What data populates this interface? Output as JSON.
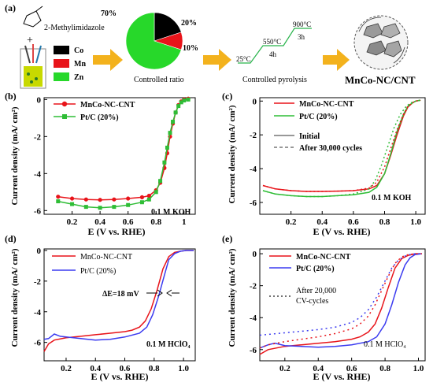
{
  "scheme": {
    "panel_label": "(a)",
    "reagent": "2-Methylimidazole",
    "plus": "+",
    "legend": [
      {
        "label": "Co",
        "color": "#000000"
      },
      {
        "label": "Mn",
        "color": "#e8141a"
      },
      {
        "label": "Zn",
        "color": "#27d82a"
      }
    ],
    "pie": {
      "slices": [
        {
          "name": "Co",
          "value": 20,
          "color": "#000000"
        },
        {
          "name": "Mn",
          "value": 10,
          "color": "#e8141a"
        },
        {
          "name": "Zn",
          "value": 70,
          "color": "#27d82a"
        }
      ],
      "labels": [
        "70%",
        "20%",
        "10%"
      ],
      "caption": "Controlled ratio"
    },
    "pyrolysis": {
      "temps": [
        "25°C",
        "550°C",
        "900°C"
      ],
      "holds": [
        "4h",
        "3h"
      ],
      "caption": "Controlled pyrolysis"
    },
    "product": "MnCo-NC/CNT",
    "arrow_color": "#f3b21d"
  },
  "chart_data": [
    {
      "panel": "(b)",
      "type": "line",
      "xlabel": "E (V vs. RHE)",
      "ylabel": "Current density (mA/ cm²)",
      "xlim": [
        0,
        1.08
      ],
      "ylim": [
        -6.2,
        0.1
      ],
      "xticks": [
        0.2,
        0.4,
        0.6,
        0.8,
        1
      ],
      "xticklabels": [
        "0.2",
        "0.4",
        "0.6",
        "0.8",
        "1"
      ],
      "yticks": [
        0,
        -2,
        -4,
        -6
      ],
      "yticklabels": [
        "0",
        "-2",
        "-4",
        "-6"
      ],
      "annotation": "0.1 M KOH",
      "series": [
        {
          "name": "MnCo-NC-CNT",
          "color": "#e8141a",
          "marker": "circle",
          "x": [
            0.1,
            0.2,
            0.3,
            0.4,
            0.5,
            0.6,
            0.7,
            0.75,
            0.8,
            0.83,
            0.86,
            0.88,
            0.9,
            0.92,
            0.94,
            0.96,
            0.98,
            1.0,
            1.03
          ],
          "y": [
            -5.25,
            -5.35,
            -5.4,
            -5.42,
            -5.4,
            -5.35,
            -5.28,
            -5.2,
            -4.9,
            -4.5,
            -3.7,
            -2.9,
            -2.0,
            -1.3,
            -0.7,
            -0.3,
            -0.1,
            0.0,
            0.05
          ]
        },
        {
          "name": "Pt/C (20%)",
          "color": "#2fbd36",
          "marker": "square",
          "x": [
            0.1,
            0.2,
            0.3,
            0.4,
            0.5,
            0.6,
            0.7,
            0.75,
            0.8,
            0.83,
            0.86,
            0.88,
            0.9,
            0.92,
            0.94,
            0.96,
            0.98,
            1.0,
            1.03
          ],
          "y": [
            -5.5,
            -5.65,
            -5.8,
            -5.85,
            -5.8,
            -5.7,
            -5.55,
            -5.4,
            -5.0,
            -4.4,
            -3.4,
            -2.6,
            -1.8,
            -1.2,
            -0.7,
            -0.35,
            -0.15,
            -0.05,
            0.0
          ]
        }
      ]
    },
    {
      "panel": "(c)",
      "type": "line",
      "xlabel": "E (V vs. RHE)",
      "ylabel": "Current density (mA/ cm²)",
      "xlim": [
        0,
        1.06
      ],
      "ylim": [
        -6.7,
        0.2
      ],
      "xticks": [
        0.2,
        0.4,
        0.6,
        0.8,
        1.0
      ],
      "xticklabels": [
        "0.2",
        "0.4",
        "0.6",
        "0.8",
        "1.0"
      ],
      "yticks": [
        0,
        -2,
        -4,
        -6
      ],
      "yticklabels": [
        "0",
        "-2",
        "-4",
        "-6"
      ],
      "annotation": "0.1 M KOH",
      "legend": [
        "MnCo-NC-CNT",
        "Pt/C (20%)",
        "Initial",
        "After 30,000 cycles"
      ],
      "series": [
        {
          "name": "MnCo-NC-CNT",
          "color": "#e8141a",
          "dash": "",
          "x": [
            0.02,
            0.1,
            0.2,
            0.3,
            0.4,
            0.5,
            0.6,
            0.7,
            0.75,
            0.8,
            0.84,
            0.88,
            0.92,
            0.95,
            0.98,
            1.0,
            1.03
          ],
          "y": [
            -5.0,
            -5.2,
            -5.3,
            -5.35,
            -5.35,
            -5.33,
            -5.3,
            -5.2,
            -5.0,
            -4.3,
            -3.2,
            -2.0,
            -0.9,
            -0.35,
            -0.1,
            0.0,
            0.05
          ]
        },
        {
          "name": "Pt/C (20%)",
          "color": "#2fbd36",
          "dash": "",
          "x": [
            0.02,
            0.1,
            0.2,
            0.3,
            0.4,
            0.5,
            0.6,
            0.7,
            0.75,
            0.8,
            0.84,
            0.88,
            0.92,
            0.95,
            0.98,
            1.0,
            1.03
          ],
          "y": [
            -5.3,
            -5.5,
            -5.6,
            -5.65,
            -5.65,
            -5.6,
            -5.55,
            -5.4,
            -5.1,
            -4.3,
            -3.1,
            -1.8,
            -0.8,
            -0.3,
            -0.1,
            0.0,
            0.05
          ]
        },
        {
          "name": "MnCo-NC-CNT After 30,000 cycles",
          "color": "#e8141a",
          "dash": "2 3",
          "x": [
            0.02,
            0.1,
            0.2,
            0.3,
            0.4,
            0.5,
            0.6,
            0.7,
            0.75,
            0.8,
            0.84,
            0.88,
            0.92,
            0.95,
            0.98,
            1.0,
            1.03
          ],
          "y": [
            -5.0,
            -5.2,
            -5.3,
            -5.35,
            -5.35,
            -5.33,
            -5.3,
            -5.15,
            -4.8,
            -3.9,
            -2.8,
            -1.7,
            -0.8,
            -0.3,
            -0.1,
            0.0,
            0.05
          ]
        },
        {
          "name": "Pt/C (20%) After 30,000 cycles",
          "color": "#2fbd36",
          "dash": "2 3",
          "x": [
            0.02,
            0.1,
            0.2,
            0.3,
            0.4,
            0.5,
            0.6,
            0.7,
            0.74,
            0.78,
            0.82,
            0.86,
            0.9,
            0.94,
            0.97,
            1.0,
            1.03
          ],
          "y": [
            -5.3,
            -5.5,
            -5.6,
            -5.65,
            -5.65,
            -5.6,
            -5.5,
            -5.2,
            -4.7,
            -3.8,
            -2.7,
            -1.6,
            -0.8,
            -0.3,
            -0.1,
            0.0,
            0.05
          ]
        }
      ]
    },
    {
      "panel": "(d)",
      "type": "line",
      "xlabel": "E (V vs. RHE)",
      "ylabel": "Current density (mA/ cm²)",
      "xlim": [
        0.05,
        1.08
      ],
      "ylim": [
        -7.2,
        0.1
      ],
      "xticks": [
        0.2,
        0.4,
        0.6,
        0.8,
        1.0
      ],
      "xticklabels": [
        "0.2",
        "0.4",
        "0.6",
        "0.8",
        "1.0"
      ],
      "yticks": [
        0,
        -2,
        -4,
        -6
      ],
      "yticklabels": [
        "0",
        "-2",
        "-4",
        "-6"
      ],
      "annotation": "0.1 M HClO₄",
      "delta_label": "ΔE=18 mV",
      "series": [
        {
          "name": "MnCo-NC-CNT",
          "color": "#e8141a",
          "x": [
            0.05,
            0.08,
            0.12,
            0.2,
            0.3,
            0.4,
            0.5,
            0.6,
            0.65,
            0.7,
            0.74,
            0.78,
            0.82,
            0.86,
            0.9,
            0.94,
            0.98,
            1.02,
            1.07
          ],
          "y": [
            -6.6,
            -6.1,
            -5.85,
            -5.7,
            -5.6,
            -5.5,
            -5.4,
            -5.3,
            -5.2,
            -5.0,
            -4.6,
            -3.8,
            -2.6,
            -1.2,
            -0.4,
            -0.12,
            -0.05,
            0.0,
            0.0
          ]
        },
        {
          "name": "Pt/C (20%)",
          "color": "#3b3bf0",
          "x": [
            0.05,
            0.08,
            0.12,
            0.16,
            0.2,
            0.3,
            0.4,
            0.5,
            0.6,
            0.7,
            0.75,
            0.79,
            0.83,
            0.87,
            0.9,
            0.94,
            0.98,
            1.02,
            1.07
          ],
          "y": [
            -5.8,
            -5.75,
            -5.45,
            -5.6,
            -5.65,
            -5.75,
            -5.85,
            -5.8,
            -5.65,
            -5.4,
            -5.0,
            -4.2,
            -3.0,
            -1.6,
            -0.6,
            -0.2,
            -0.05,
            0.0,
            0.0
          ]
        }
      ]
    },
    {
      "panel": "(e)",
      "type": "line",
      "xlabel": "E (V vs. RHE)",
      "ylabel": "Current density (mA/ cm²)",
      "xlim": [
        0.05,
        1.04
      ],
      "ylim": [
        -6.7,
        0.3
      ],
      "xticks": [
        0.2,
        0.4,
        0.6,
        0.8,
        1.0
      ],
      "xticklabels": [
        "0.2",
        "0.4",
        "0.6",
        "0.8",
        "1.0"
      ],
      "yticks": [
        0,
        -2,
        -4,
        -6
      ],
      "yticklabels": [
        "0",
        "-2",
        "-4",
        "-6"
      ],
      "annotation": "0.1 M HClO₄",
      "legend": [
        "MnCo-NC-CNT",
        "Pt/C (20%)",
        "After 20,000",
        "CV-cycles"
      ],
      "series": [
        {
          "name": "MnCo-NC-CNT",
          "color": "#e8141a",
          "dash": "",
          "x": [
            0.05,
            0.1,
            0.2,
            0.3,
            0.4,
            0.5,
            0.6,
            0.65,
            0.7,
            0.74,
            0.78,
            0.82,
            0.86,
            0.9,
            0.94,
            0.98,
            1.02
          ],
          "y": [
            -6.3,
            -6.0,
            -5.8,
            -5.7,
            -5.6,
            -5.5,
            -5.35,
            -5.2,
            -4.9,
            -4.4,
            -3.4,
            -2.1,
            -0.9,
            -0.3,
            -0.1,
            0.0,
            0.0
          ]
        },
        {
          "name": "Pt/C (20%)",
          "color": "#3b3bf0",
          "dash": "",
          "x": [
            0.05,
            0.1,
            0.14,
            0.2,
            0.3,
            0.4,
            0.5,
            0.6,
            0.7,
            0.75,
            0.8,
            0.84,
            0.88,
            0.92,
            0.95,
            0.98,
            1.02
          ],
          "y": [
            -5.9,
            -5.7,
            -5.6,
            -5.75,
            -5.8,
            -5.85,
            -5.8,
            -5.7,
            -5.5,
            -5.2,
            -4.4,
            -3.2,
            -1.8,
            -0.7,
            -0.25,
            -0.05,
            0.0
          ]
        },
        {
          "name": "MnCo-NC-CNT After 20,000 CV-cycles",
          "color": "#e8141a",
          "dash": "2 4",
          "x": [
            0.05,
            0.1,
            0.2,
            0.3,
            0.4,
            0.5,
            0.6,
            0.65,
            0.7,
            0.74,
            0.78,
            0.82,
            0.86,
            0.9,
            0.94,
            0.98,
            1.02
          ],
          "y": [
            -5.9,
            -5.7,
            -5.5,
            -5.35,
            -5.2,
            -5.0,
            -4.7,
            -4.4,
            -3.9,
            -3.2,
            -2.3,
            -1.4,
            -0.6,
            -0.2,
            -0.05,
            0.0,
            0.0
          ]
        },
        {
          "name": "Pt/C (20%) After 20,000 CV-cycles",
          "color": "#3b3bf0",
          "dash": "2 4",
          "x": [
            0.05,
            0.1,
            0.2,
            0.3,
            0.4,
            0.5,
            0.6,
            0.65,
            0.7,
            0.75,
            0.8,
            0.84,
            0.88,
            0.92,
            0.95,
            0.98,
            1.02
          ],
          "y": [
            -5.1,
            -5.05,
            -4.95,
            -4.85,
            -4.75,
            -4.6,
            -4.3,
            -4.0,
            -3.5,
            -2.7,
            -1.7,
            -0.9,
            -0.4,
            -0.15,
            -0.05,
            0.0,
            0.0
          ]
        }
      ]
    }
  ]
}
